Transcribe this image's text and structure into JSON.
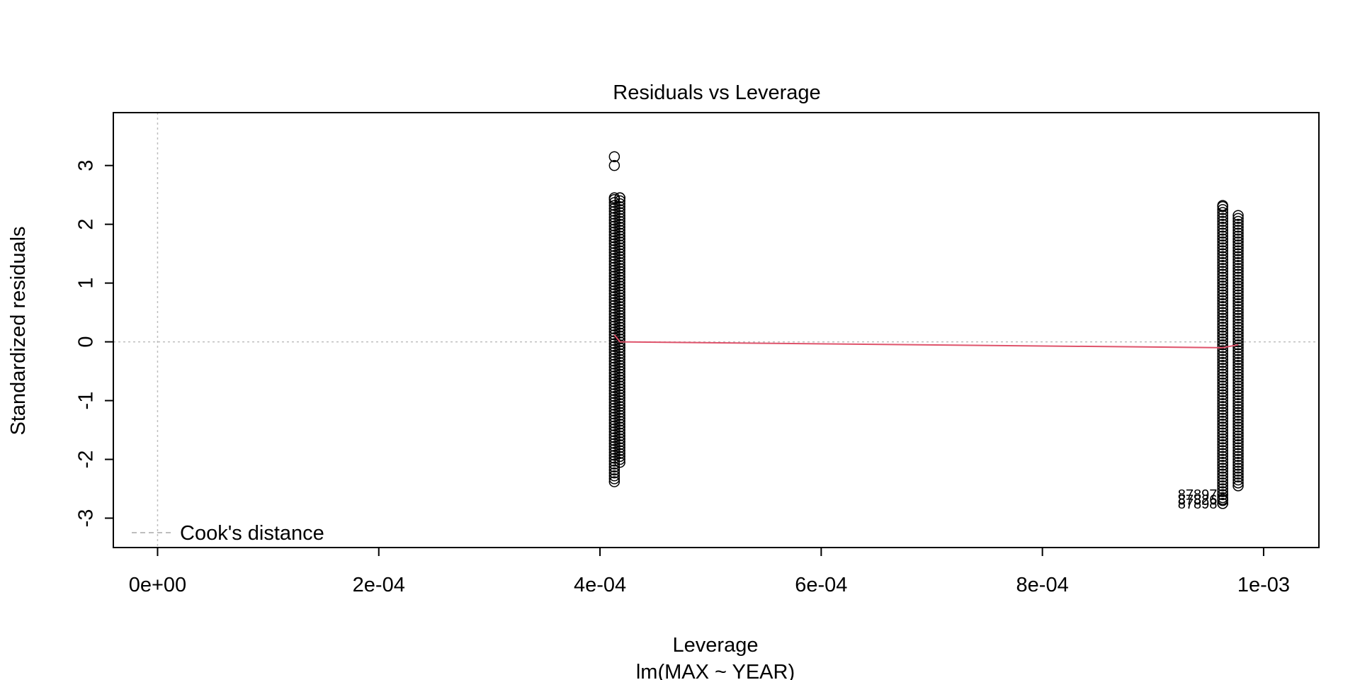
{
  "chart_data": {
    "type": "scatter",
    "title": "Residuals vs Leverage",
    "xlabel": "Leverage",
    "subtitle": "lm(MAX ~ YEAR)",
    "ylabel": "Standardized residuals",
    "xlim": [
      -4e-05,
      0.00105
    ],
    "ylim": [
      -3.5,
      3.9
    ],
    "x_ticks": [
      0,
      0.0002,
      0.0004,
      0.0006,
      0.0008,
      0.001
    ],
    "x_tick_labels": [
      "0e+00",
      "2e-04",
      "4e-04",
      "6e-04",
      "8e-04",
      "1e-03"
    ],
    "y_ticks": [
      -3,
      -2,
      -1,
      0,
      1,
      2,
      3
    ],
    "y_tick_labels": [
      "-3",
      "-2",
      "-1",
      "0",
      "1",
      "2",
      "3"
    ],
    "legend": {
      "label": "Cook's distance",
      "position": "bottom-left"
    },
    "groups": [
      {
        "x": 0.000413,
        "y_min": -2.38,
        "y_max": 2.45
      },
      {
        "x": 0.000418,
        "y_min": -2.05,
        "y_max": 2.45
      },
      {
        "x": 0.000963,
        "y_min": -2.75,
        "y_max": 2.32
      },
      {
        "x": 0.000977,
        "y_min": -2.45,
        "y_max": 2.15
      }
    ],
    "outliers": [
      {
        "x": 0.000413,
        "y": 3.15
      },
      {
        "x": 0.000413,
        "y": 3.0
      },
      {
        "x": 0.000413,
        "y": 2.45
      },
      {
        "x": 0.000418,
        "y": 2.45
      },
      {
        "x": 0.000963,
        "y": 2.32
      },
      {
        "x": 0.000963,
        "y": -2.6
      },
      {
        "x": 0.000963,
        "y": -2.68
      },
      {
        "x": 0.000963,
        "y": -2.75
      }
    ],
    "point_labels": [
      {
        "text": "87897",
        "x": 0.000958,
        "y": -2.68
      },
      {
        "text": "87826",
        "x": 0.000958,
        "y": -2.77
      },
      {
        "text": "87898",
        "x": 0.000958,
        "y": -2.84
      }
    ],
    "smooth_line": {
      "x": [
        0.000413,
        0.000418,
        0.000963,
        0.000977
      ],
      "y": [
        0.12,
        0.0,
        -0.1,
        -0.05
      ]
    },
    "reference_lines": {
      "h": 0,
      "v": 0
    },
    "colors": {
      "points": "#000000",
      "smooth": "#DF536B",
      "reference": "#BEBEBE",
      "legend_text": "#9E9E9E"
    }
  }
}
